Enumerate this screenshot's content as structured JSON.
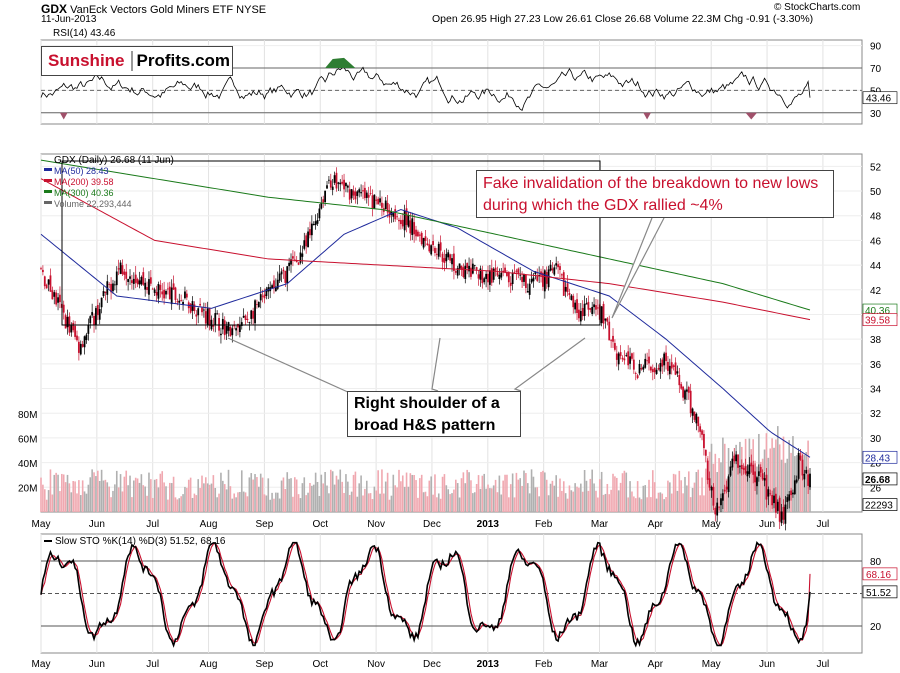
{
  "header": {
    "symbol": "GDX",
    "name": "VanEck Vectors Gold Miners ETF",
    "exchange": "NYSE",
    "date": "11-Jun-2013",
    "quote": "Open 26.95  High 27.23  Low 26.61  Close 26.68  Volume 22.3M  Chg -0.91 (-3.30%)",
    "credit": "© StockCharts.com"
  },
  "logo": {
    "part1": "Sunshine",
    "part2": "Profits.com"
  },
  "annotations": {
    "fake_invalidation": "Fake invalidation of the breakdown to new lows during which the GDX rallied ~4%",
    "hs_line1": "Right shoulder of a",
    "hs_line2": "broad H&S pattern"
  },
  "colors": {
    "up": "#000000",
    "down": "#c8102e",
    "ma50": "#1f2a9c",
    "ma200": "#c8102e",
    "ma300": "#1a7a1a",
    "volume": "#b0b0b0",
    "volume_down": "#f0a8b0",
    "rsi_fill_up": "#2e7d32",
    "rsi_fill_down": "#a0506a"
  },
  "chart_data": [
    {
      "type": "line",
      "title": "RSI(14) 43.46",
      "series": [
        {
          "name": "RSI(14)",
          "last": 43.46
        }
      ],
      "ylim": [
        20,
        95
      ],
      "y_ticks": [
        30,
        50,
        70,
        90
      ],
      "guides": [
        30,
        50,
        70
      ],
      "value_label": "43.46"
    },
    {
      "type": "line",
      "title": "GDX (Daily) 26.68 (11 Jun)",
      "legend": [
        {
          "label": "MA(50) 28.43",
          "color": "#1f2a9c"
        },
        {
          "label": "MA(200) 39.58",
          "color": "#c8102e"
        },
        {
          "label": "MA(300) 40.36",
          "color": "#1a7a1a"
        },
        {
          "label": "Volume 22,293,444",
          "color": "#666666"
        }
      ],
      "x": [
        "May",
        "Jun",
        "Jul",
        "Aug",
        "Sep",
        "Oct",
        "Nov",
        "Dec",
        "2013",
        "Feb",
        "Mar",
        "Apr",
        "May",
        "Jun",
        "Jul"
      ],
      "price_anchors": [
        {
          "t": 0,
          "v": 43.5
        },
        {
          "t": 20,
          "v": 37.5
        },
        {
          "t": 42,
          "v": 44
        },
        {
          "t": 60,
          "v": 42
        },
        {
          "t": 78,
          "v": 41
        },
        {
          "t": 102,
          "v": 38.5
        },
        {
          "t": 122,
          "v": 42
        },
        {
          "t": 140,
          "v": 45.5
        },
        {
          "t": 152,
          "v": 51
        },
        {
          "t": 170,
          "v": 49.5
        },
        {
          "t": 186,
          "v": 48.5
        },
        {
          "t": 204,
          "v": 46
        },
        {
          "t": 222,
          "v": 43.5
        },
        {
          "t": 240,
          "v": 43
        },
        {
          "t": 258,
          "v": 42.5
        },
        {
          "t": 272,
          "v": 43.5
        },
        {
          "t": 282,
          "v": 40.5
        },
        {
          "t": 296,
          "v": 40
        },
        {
          "t": 304,
          "v": 37
        },
        {
          "t": 316,
          "v": 35.5
        },
        {
          "t": 330,
          "v": 36.5
        },
        {
          "t": 340,
          "v": 33.5
        },
        {
          "t": 348,
          "v": 31
        },
        {
          "t": 356,
          "v": 23.5
        },
        {
          "t": 366,
          "v": 28.5
        },
        {
          "t": 380,
          "v": 26.5
        },
        {
          "t": 392,
          "v": 23.5
        },
        {
          "t": 400,
          "v": 28
        },
        {
          "t": 406,
          "v": 26.68
        }
      ],
      "ma50_anchors": [
        {
          "t": 0,
          "v": 46.5
        },
        {
          "t": 40,
          "v": 41.5
        },
        {
          "t": 90,
          "v": 40.5
        },
        {
          "t": 130,
          "v": 42.5
        },
        {
          "t": 160,
          "v": 46.5
        },
        {
          "t": 190,
          "v": 48.5
        },
        {
          "t": 220,
          "v": 47
        },
        {
          "t": 260,
          "v": 43.5
        },
        {
          "t": 300,
          "v": 41.5
        },
        {
          "t": 330,
          "v": 38
        },
        {
          "t": 360,
          "v": 34
        },
        {
          "t": 385,
          "v": 30.5
        },
        {
          "t": 406,
          "v": 28.43
        }
      ],
      "ma200_anchors": [
        {
          "t": 0,
          "v": 51
        },
        {
          "t": 60,
          "v": 46
        },
        {
          "t": 120,
          "v": 44.5
        },
        {
          "t": 180,
          "v": 44
        },
        {
          "t": 240,
          "v": 43.5
        },
        {
          "t": 300,
          "v": 42.5
        },
        {
          "t": 360,
          "v": 41
        },
        {
          "t": 406,
          "v": 39.58
        }
      ],
      "ma300_anchors": [
        {
          "t": 0,
          "v": 52.5
        },
        {
          "t": 60,
          "v": 51
        },
        {
          "t": 120,
          "v": 49.5
        },
        {
          "t": 180,
          "v": 48.5
        },
        {
          "t": 240,
          "v": 46.5
        },
        {
          "t": 300,
          "v": 44.5
        },
        {
          "t": 360,
          "v": 42.5
        },
        {
          "t": 406,
          "v": 40.36
        }
      ],
      "ylim": [
        24,
        53
      ],
      "y_ticks": [
        26,
        28,
        30,
        32,
        34,
        36,
        38,
        40,
        42,
        44,
        46,
        48,
        50,
        52
      ],
      "value_labels": [
        "40.36",
        "39.58",
        "28.43",
        "26.68",
        "22293"
      ],
      "volume_ticks": [
        "80M",
        "60M",
        "40M",
        "20M"
      ],
      "volume_ylim": [
        0,
        90
      ]
    },
    {
      "type": "line",
      "title": "Slow STO %K(14) %D(3) 51.52, 68.16",
      "series": [
        {
          "name": "%K",
          "last": 51.52
        },
        {
          "name": "%D",
          "last": 68.16
        }
      ],
      "ylim": [
        -5,
        105
      ],
      "y_ticks": [
        20,
        50,
        80
      ],
      "guides": [
        20,
        50,
        80
      ],
      "value_labels": [
        "68.16",
        "51.52"
      ]
    }
  ]
}
